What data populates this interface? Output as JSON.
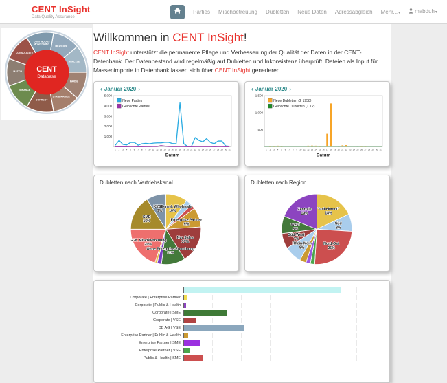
{
  "navbar": {
    "brand": "CENT InSight",
    "brand_subtitle": "Data Quality Assurance",
    "items": [
      {
        "label": "Parties"
      },
      {
        "label": "Mischbetreuung"
      },
      {
        "label": "Dubletten"
      },
      {
        "label": "Neue Daten"
      },
      {
        "label": "Adressabgleich"
      }
    ],
    "more_label": "Mehr...",
    "user_label": "mabduh"
  },
  "cycle": {
    "center_title": "CENT",
    "center_subtitle": "Database",
    "segments": [
      {
        "label": "MEASURE",
        "color": "#93a9bc"
      },
      {
        "label": "ANALYZE",
        "color": "#a3b8c6"
      },
      {
        "label": "PARSE",
        "color": "#a08273"
      },
      {
        "label": "STANDARDIZE",
        "color": "#a57f6c"
      },
      {
        "label": "CORRECT",
        "color": "#8f5b49"
      },
      {
        "label": "ENHANCE",
        "color": "#6d8b4e"
      },
      {
        "label": "MATCH",
        "color": "#8d7e72"
      },
      {
        "label": "CONSOLIDATE",
        "color": "#9c5248"
      },
      {
        "label": "CONTINUOUS MONITORING",
        "color": "#7e99ac"
      }
    ]
  },
  "main": {
    "title": {
      "prefix": "Willkommen in ",
      "brand": "CENT InSight",
      "suffix": "!"
    },
    "intro": {
      "part1_accent": "CENT InSight",
      "part2": " unterstützt die permanente Pflege und Verbesserung der Qualität der Daten in der CENT-Datenbank. Der Datenbestand wird regelmäßig auf Dubletten und Inkonsistenz überprüft. Dateien als Input für Massenimporte in Datenbank lassen sich über ",
      "part3_accent": "CENT InSight",
      "part4": " generieren."
    }
  },
  "chart_data": [
    {
      "type": "line",
      "month_nav": {
        "prev": "‹",
        "label": "Januar 2020",
        "next": "›"
      },
      "x": [
        1,
        2,
        3,
        4,
        5,
        6,
        7,
        8,
        9,
        10,
        11,
        12,
        13,
        14,
        15,
        16,
        17,
        18,
        19,
        20,
        21,
        22,
        23,
        24,
        25,
        26,
        27,
        28,
        29,
        30,
        31
      ],
      "series": [
        {
          "name": "Neue Parties",
          "color": "#29abe2",
          "values": [
            150,
            620,
            230,
            180,
            420,
            430,
            150,
            300,
            330,
            300,
            350,
            380,
            380,
            430,
            430,
            320,
            300,
            4300,
            300,
            30,
            30,
            900,
            620,
            480,
            800,
            420,
            300,
            560,
            560,
            80,
            40
          ]
        },
        {
          "name": "Gelöschte Parties",
          "color": "#9b32a8",
          "values": [
            15,
            20,
            15,
            15,
            20,
            20,
            15,
            15,
            20,
            20,
            25,
            30,
            110,
            60,
            25,
            20,
            20,
            25,
            20,
            15,
            15,
            20,
            20,
            20,
            25,
            20,
            15,
            20,
            20,
            15,
            15
          ]
        }
      ],
      "xlabel": "Datum",
      "ylim": [
        0,
        5000
      ],
      "yticks": [
        1000,
        2000,
        3000,
        4000,
        5000
      ],
      "ytick_labels": [
        "1,000",
        "2,000",
        "3,000",
        "4,000",
        "5,000"
      ],
      "legend_position": "top-left"
    },
    {
      "type": "bar",
      "month_nav": {
        "prev": "‹",
        "label": "Januar 2020",
        "next": "›"
      },
      "x": [
        1,
        2,
        3,
        4,
        5,
        6,
        7,
        8,
        9,
        10,
        11,
        12,
        13,
        14,
        15,
        16,
        17,
        18,
        19,
        20,
        21,
        22,
        23,
        24,
        25,
        26,
        27,
        28,
        29,
        30,
        31
      ],
      "series": [
        {
          "name": "Neue Dubletten (Σ 1958)",
          "color": "#f7a528",
          "values": [
            0,
            25,
            10,
            30,
            12,
            0,
            0,
            0,
            0,
            0,
            0,
            30,
            35,
            30,
            10,
            0,
            380,
            1270,
            0,
            0,
            40,
            46,
            0,
            0,
            0,
            20,
            20,
            0,
            0,
            0,
            0
          ]
        },
        {
          "name": "Gelöschte Dubletten (Σ 12)",
          "color": "#1e8a28",
          "values": [
            0,
            0,
            0,
            0,
            2,
            0,
            0,
            0,
            0,
            0,
            0,
            0,
            4,
            0,
            0,
            0,
            0,
            0,
            0,
            3,
            0,
            0,
            0,
            0,
            3,
            0,
            0,
            0,
            0,
            0,
            0
          ]
        }
      ],
      "xlabel": "Datum",
      "ylim": [
        0,
        1500
      ],
      "yticks": [
        500,
        1000,
        1500
      ],
      "ytick_labels": [
        "500",
        "1,000",
        "1,500"
      ],
      "legend_position": "top-left"
    },
    {
      "type": "pie",
      "title": "Dubletten nach Vertriebskanal",
      "slices": [
        {
          "label": "KA Home & Wholesale",
          "pct": 10,
          "color": "#e6c34a"
        },
        {
          "label": "",
          "pct": 3,
          "color": "#a9cdec"
        },
        {
          "label": "",
          "pct": 2,
          "color": "#cc4f4f"
        },
        {
          "label": "Enterprise Partner",
          "pct": 9,
          "color": "#cb9a31"
        },
        {
          "label": "Nur Sales",
          "pct": 17,
          "color": "#9e3d3c"
        },
        {
          "label": "Ohne Enterprise-Zuordnung",
          "pct": 11,
          "color": "#43793a"
        },
        {
          "label": "",
          "pct": 2,
          "color": "#7b3fc4"
        },
        {
          "label": "",
          "pct": 1,
          "color": "#e6c34a"
        },
        {
          "label": "GGK Mischbetreuung",
          "pct": 20,
          "color": "#ee6f6e"
        },
        {
          "label": "SME",
          "pct": 16,
          "color": "#a68a2b"
        },
        {
          "label": "VSE",
          "pct": 9,
          "color": "#7e93a8"
        }
      ]
    },
    {
      "type": "pie",
      "title": "Dubletten nach Region",
      "slices": [
        {
          "label": "\"unbekannt\"",
          "pct": 18,
          "color": "#e6c34a"
        },
        {
          "label": "Süd",
          "pct": 8,
          "color": "#a9cdec"
        },
        {
          "label": "Nord-Ost",
          "pct": 25,
          "color": "#cc4f4f"
        },
        {
          "label": "",
          "pct": 2,
          "color": "#4ca64c"
        },
        {
          "label": "",
          "pct": 2,
          "color": "#9b59e0"
        },
        {
          "label": "",
          "pct": 3,
          "color": "#cb9a31"
        },
        {
          "label": "Rhein-Main",
          "pct": 8,
          "color": "#a9cdec"
        },
        {
          "label": "Süd-West",
          "pct": 7,
          "color": "#9e3d3c"
        },
        {
          "label": "West",
          "pct": 8,
          "color": "#43793a"
        },
        {
          "label": "Zentrale",
          "pct": 19,
          "color": "#8c44c0"
        }
      ]
    },
    {
      "type": "hbar",
      "categories": [
        "",
        "Corporate | Enterprise Partner",
        "Corporate | Public & Health",
        "Corporate | SME",
        "Corporate | VSE",
        "DB AG | VSE",
        "Enterprise Partner | Public & Health",
        "Enterprise Partner | SME",
        "Enterprise Partner | VSE",
        "Public & Health | SME"
      ],
      "values": [
        780,
        12,
        10,
        215,
        60,
        302,
        22,
        82,
        30,
        92
      ],
      "colors": [
        "#c2f3f2",
        "#f0dc50",
        "#8c44c0",
        "#3f7a37",
        "#b04343",
        "#8ba7bd",
        "#cb9a31",
        "#9b30e0",
        "#4ca64c",
        "#cc4f4f"
      ],
      "xmax": 1000
    }
  ]
}
